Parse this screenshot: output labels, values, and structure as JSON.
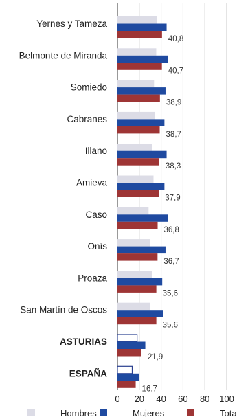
{
  "chart_data": {
    "type": "bar",
    "orientation": "horizontal",
    "categories": [
      "Yernes y Tameza",
      "Belmonte de Miranda",
      "Somiedo",
      "Cabranes",
      "Illano",
      "Amieva",
      "Caso",
      "Onís",
      "Proaza",
      "San Martín de Oscos",
      "ASTURIAS",
      "ESPAÑA"
    ],
    "bold_categories": [
      "ASTURIAS",
      "ESPAÑA"
    ],
    "series": [
      {
        "name": "Hombres",
        "color": "#dcdce6",
        "values": [
          36,
          35.5,
          33.5,
          34.5,
          31.5,
          33,
          28.5,
          30,
          31.5,
          30,
          18,
          13.5
        ]
      },
      {
        "name": "Mujeres",
        "color": "#1f4aa0",
        "values": [
          45,
          46,
          44,
          43,
          45,
          43,
          46.5,
          44,
          41,
          42,
          25.5,
          19.5
        ]
      },
      {
        "name": "Tota",
        "color": "#9e3535",
        "values": [
          40.8,
          40.7,
          38.9,
          38.7,
          38.3,
          37.9,
          36.8,
          36.7,
          35.6,
          35.6,
          21.9,
          16.7
        ]
      }
    ],
    "data_labels": [
      "40,8",
      "40,7",
      "38,9",
      "38,7",
      "38,3",
      "37,9",
      "36,8",
      "36,7",
      "35,6",
      "35,6",
      "21,9",
      "16,7"
    ],
    "x_ticks": [
      "0",
      "20",
      "40",
      "60",
      "80",
      "100"
    ],
    "xlim": [
      0,
      100
    ],
    "grid": true,
    "legend_position": "bottom"
  }
}
